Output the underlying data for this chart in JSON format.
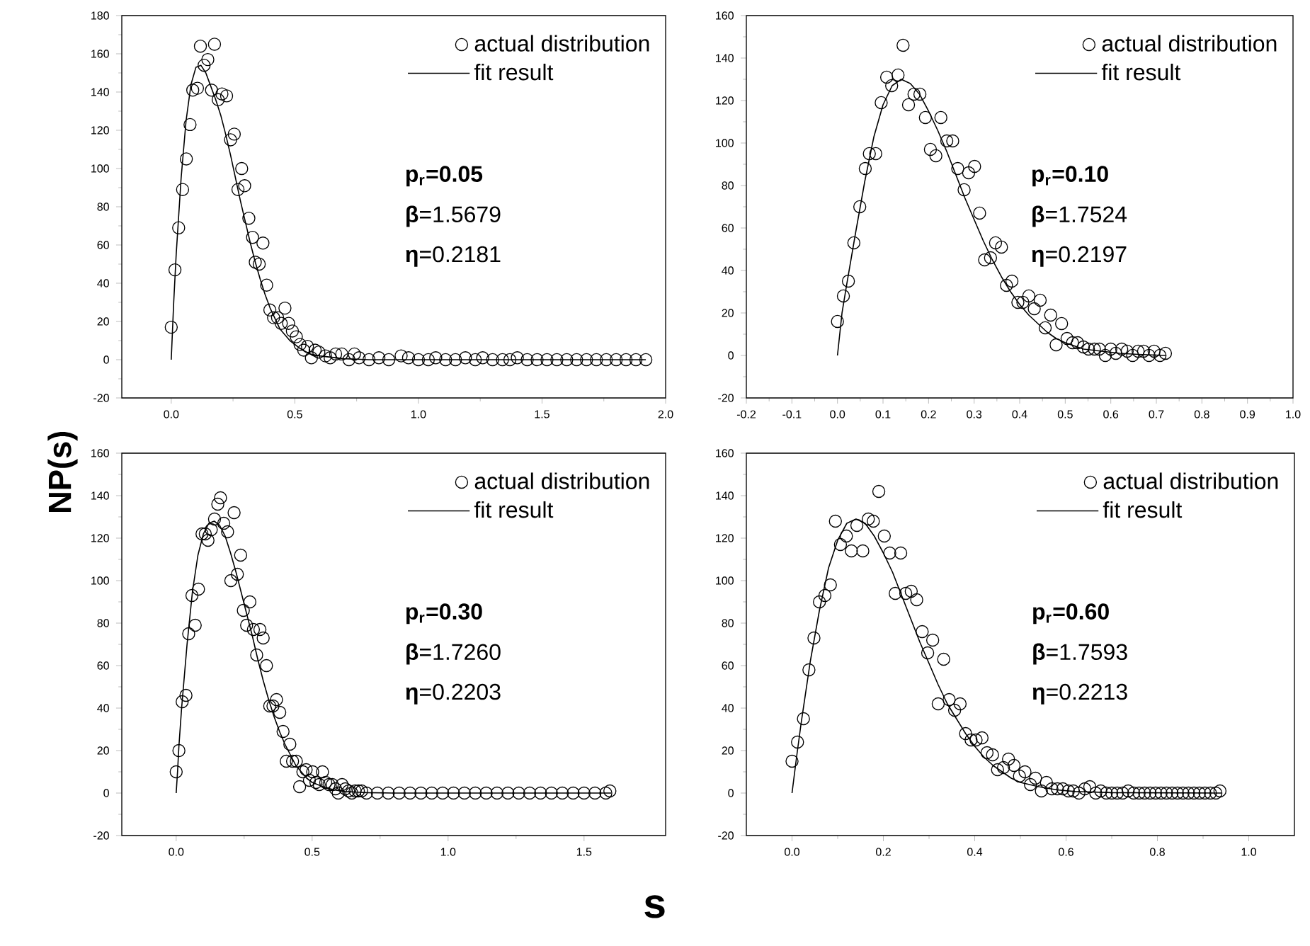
{
  "chart_data": [
    {
      "type": "scatter",
      "xlim": [
        -0.2,
        2.0
      ],
      "xticks": [
        {
          "value": 0,
          "label": "0.0"
        },
        0.5,
        {
          "value": 1,
          "label": "1.0"
        },
        1.5,
        {
          "value": 2,
          "label": "2.0"
        }
      ],
      "ylim": [
        -20,
        180
      ],
      "yticks": [
        -20,
        0,
        20,
        40,
        60,
        80,
        100,
        120,
        140,
        160,
        180
      ],
      "legend": "top right",
      "annotations": [
        "p$_{r}$=0.05",
        "**β**=1.5679",
        "**η**=0.2181"
      ],
      "series": [
        {
          "name": "actual distribution",
          "marker": "circle",
          "color": "#000000",
          "x": [
            0,
            0.015,
            0.03,
            0.046,
            0.061,
            0.076,
            0.087,
            0.106,
            0.118,
            0.133,
            0.148,
            0.163,
            0.175,
            0.19,
            0.205,
            0.224,
            0.24,
            0.255,
            0.27,
            0.285,
            0.297,
            0.314,
            0.329,
            0.34,
            0.356,
            0.371,
            0.386,
            0.399,
            0.414,
            0.43,
            0.445,
            0.46,
            0.475,
            0.49,
            0.506,
            0.521,
            0.536,
            0.551,
            0.567,
            0.582,
            0.597,
            0.624,
            0.643,
            0.665,
            0.69,
            0.719,
            0.741,
            0.76,
            0.8,
            0.84,
            0.88,
            0.93,
            0.96,
            1.0,
            1.04,
            1.07,
            1.11,
            1.15,
            1.19,
            1.23,
            1.26,
            1.3,
            1.34,
            1.37,
            1.4,
            1.44,
            1.48,
            1.52,
            1.56,
            1.6,
            1.64,
            1.68,
            1.72,
            1.76,
            1.8,
            1.84,
            1.88,
            1.92
          ],
          "values": [
            17,
            47,
            69,
            89,
            105,
            123,
            141,
            142,
            164,
            154,
            157,
            141,
            165,
            136,
            139,
            138,
            115,
            118,
            89,
            100,
            91,
            74,
            64,
            51,
            50,
            61,
            39,
            26,
            22,
            22,
            19,
            27,
            19,
            15,
            12,
            8,
            5,
            7,
            1,
            5,
            4,
            2,
            1,
            3,
            3,
            0,
            3,
            1,
            0,
            1,
            0,
            2,
            1,
            0,
            0,
            1,
            0,
            0,
            1,
            0,
            1,
            0,
            0,
            0,
            1,
            0,
            0,
            0,
            0,
            0,
            0,
            0,
            0,
            0,
            0,
            0,
            0,
            0
          ]
        },
        {
          "name": "fit result",
          "type": "line",
          "marker": "none",
          "line_style": "solid",
          "color": "#000000",
          "x": [
            0,
            0.01,
            0.02,
            0.04,
            0.06,
            0.08,
            0.1,
            0.12,
            0.14,
            0.16,
            0.18,
            0.2,
            0.22,
            0.24,
            0.26,
            0.28,
            0.3,
            0.32,
            0.34,
            0.36,
            0.38,
            0.4,
            0.44,
            0.48,
            0.52,
            0.56,
            0.6,
            0.7,
            0.8,
            1.92
          ],
          "values": [
            0,
            30,
            55,
            95,
            125,
            144,
            153,
            154,
            150,
            143,
            136,
            128,
            118,
            107,
            95,
            83,
            72,
            61,
            51,
            42,
            34,
            27,
            16,
            10,
            6,
            3,
            2,
            0.5,
            0,
            0
          ]
        }
      ]
    },
    {
      "type": "scatter",
      "xlim": [
        -0.2,
        1.0
      ],
      "xticks": [
        -0.2,
        -0.1,
        {
          "value": 0,
          "label": "0.0"
        },
        0.1,
        0.2,
        0.3,
        0.4,
        0.5,
        0.6,
        0.7,
        0.8,
        0.9,
        {
          "value": 1,
          "label": "1.0"
        }
      ],
      "ylim": [
        -20,
        160
      ],
      "yticks": [
        -20,
        0,
        20,
        40,
        60,
        80,
        100,
        120,
        140,
        160
      ],
      "legend": "top right",
      "annotations": [
        "p$_{r}$=0.10",
        "**β**=1.7524",
        "**η**=0.2197"
      ],
      "series": [
        {
          "name": "actual distribution",
          "marker": "circle",
          "color": "#000000",
          "x": [
            0.0,
            0.013,
            0.024,
            0.036,
            0.049,
            0.061,
            0.07,
            0.084,
            0.096,
            0.108,
            0.119,
            0.133,
            0.144,
            0.156,
            0.168,
            0.181,
            0.193,
            0.204,
            0.216,
            0.227,
            0.24,
            0.253,
            0.264,
            0.278,
            0.288,
            0.301,
            0.312,
            0.323,
            0.336,
            0.347,
            0.36,
            0.371,
            0.383,
            0.396,
            0.407,
            0.42,
            0.432,
            0.445,
            0.456,
            0.468,
            0.48,
            0.492,
            0.504,
            0.516,
            0.527,
            0.54,
            0.551,
            0.564,
            0.575,
            0.588,
            0.6,
            0.611,
            0.624,
            0.636,
            0.648,
            0.66,
            0.672,
            0.684,
            0.695,
            0.708,
            0.72
          ],
          "values": [
            16,
            28,
            35,
            53,
            70,
            88,
            95,
            95,
            119,
            131,
            127,
            132,
            146,
            118,
            123,
            123,
            112,
            97,
            94,
            112,
            101,
            101,
            88,
            78,
            86,
            89,
            67,
            45,
            46,
            53,
            51,
            33,
            35,
            25,
            25,
            28,
            22,
            26,
            13,
            19,
            5,
            15,
            8,
            6,
            6,
            4,
            3,
            3,
            3,
            0,
            3,
            1,
            3,
            2,
            0,
            2,
            2,
            0,
            2,
            0,
            1
          ]
        },
        {
          "name": "fit result",
          "type": "line",
          "marker": "none",
          "line_style": "solid",
          "color": "#000000",
          "x": [
            0,
            0.01,
            0.02,
            0.04,
            0.06,
            0.08,
            0.1,
            0.12,
            0.14,
            0.16,
            0.18,
            0.2,
            0.22,
            0.24,
            0.26,
            0.28,
            0.3,
            0.32,
            0.34,
            0.36,
            0.38,
            0.4,
            0.42,
            0.44,
            0.46,
            0.48,
            0.5,
            0.54,
            0.58,
            0.62,
            0.66,
            0.72
          ],
          "values": [
            0,
            20,
            33,
            58,
            82,
            103,
            118,
            127,
            130,
            128,
            123,
            115,
            106,
            96,
            85,
            74,
            64,
            54,
            45,
            37,
            30,
            24,
            19,
            15,
            11,
            8,
            6,
            3,
            2,
            1,
            0.5,
            0
          ]
        }
      ]
    },
    {
      "type": "scatter",
      "xlim": [
        -0.2,
        1.8
      ],
      "xticks": [
        {
          "value": 0,
          "label": "0.0"
        },
        0.5,
        {
          "value": 1,
          "label": "1.0"
        },
        1.5
      ],
      "ylim": [
        -20,
        160
      ],
      "yticks": [
        -20,
        0,
        20,
        40,
        60,
        80,
        100,
        120,
        140,
        160
      ],
      "legend": "top right",
      "xlabel": "s",
      "ylabel": "NP(s)",
      "annotations": [
        "p$_{r}$=0.30",
        "**β**=1.7260",
        "**η**=0.2203"
      ],
      "series": [
        {
          "name": "actual distribution",
          "marker": "circle",
          "color": "#000000",
          "x": [
            0.0,
            0.01,
            0.022,
            0.036,
            0.046,
            0.058,
            0.07,
            0.082,
            0.095,
            0.107,
            0.117,
            0.129,
            0.141,
            0.153,
            0.163,
            0.175,
            0.189,
            0.201,
            0.213,
            0.225,
            0.237,
            0.247,
            0.259,
            0.271,
            0.284,
            0.296,
            0.308,
            0.32,
            0.332,
            0.344,
            0.356,
            0.369,
            0.381,
            0.393,
            0.405,
            0.418,
            0.428,
            0.442,
            0.454,
            0.466,
            0.478,
            0.49,
            0.502,
            0.514,
            0.526,
            0.538,
            0.55,
            0.562,
            0.574,
            0.586,
            0.596,
            0.61,
            0.622,
            0.634,
            0.646,
            0.658,
            0.67,
            0.682,
            0.7,
            0.74,
            0.78,
            0.82,
            0.86,
            0.9,
            0.94,
            0.98,
            1.02,
            1.06,
            1.1,
            1.14,
            1.18,
            1.22,
            1.26,
            1.3,
            1.34,
            1.38,
            1.42,
            1.46,
            1.5,
            1.54,
            1.58,
            1.595
          ],
          "values": [
            10,
            20,
            43,
            46,
            75,
            93,
            79,
            96,
            122,
            122,
            119,
            124,
            129,
            136,
            139,
            127,
            123,
            100,
            132,
            103,
            112,
            86,
            79,
            90,
            77,
            65,
            77,
            73,
            60,
            41,
            41,
            44,
            38,
            29,
            15,
            23,
            15,
            15,
            3,
            10,
            11,
            6,
            10,
            5,
            4,
            10,
            5,
            4,
            4,
            2,
            0,
            4,
            2,
            1,
            0,
            1,
            1,
            1,
            0,
            0,
            0,
            0,
            0,
            0,
            0,
            0,
            0,
            0,
            0,
            0,
            0,
            0,
            0,
            0,
            0,
            0,
            0,
            0,
            0,
            0,
            0,
            1
          ]
        },
        {
          "name": "fit result",
          "type": "line",
          "marker": "none",
          "line_style": "solid",
          "color": "#000000",
          "x": [
            0,
            0.005,
            0.01,
            0.02,
            0.04,
            0.06,
            0.08,
            0.1,
            0.12,
            0.14,
            0.16,
            0.18,
            0.2,
            0.22,
            0.24,
            0.26,
            0.28,
            0.3,
            0.32,
            0.34,
            0.36,
            0.38,
            0.4,
            0.42,
            0.44,
            0.46,
            0.48,
            0.5,
            0.54,
            0.58,
            0.62,
            0.7,
            0.8,
            1.6
          ],
          "values": [
            0,
            10,
            22,
            40,
            70,
            95,
            112,
            122,
            127,
            128,
            126,
            121,
            113,
            104,
            94,
            84,
            74,
            63,
            53,
            44,
            36,
            29,
            23,
            18,
            13,
            10,
            7,
            5,
            3,
            1.5,
            0.7,
            0.2,
            0,
            0
          ]
        }
      ]
    },
    {
      "type": "scatter",
      "xlim": [
        -0.1,
        1.1
      ],
      "xticks": [
        {
          "value": 0,
          "label": "0.0"
        },
        0.2,
        0.4,
        0.6,
        0.8,
        {
          "value": 1,
          "label": "1.0"
        }
      ],
      "ylim": [
        -20,
        160
      ],
      "yticks": [
        -20,
        0,
        20,
        40,
        60,
        80,
        100,
        120,
        140,
        160
      ],
      "legend": "top right",
      "annotations": [
        "p$_{r}$=0.60",
        "**β**=1.7593",
        "**η**=0.2213"
      ],
      "series": [
        {
          "name": "actual distribution",
          "marker": "circle",
          "color": "#000000",
          "x": [
            0.0,
            0.012,
            0.025,
            0.037,
            0.048,
            0.06,
            0.072,
            0.084,
            0.095,
            0.106,
            0.119,
            0.13,
            0.142,
            0.155,
            0.167,
            0.178,
            0.19,
            0.202,
            0.214,
            0.226,
            0.238,
            0.249,
            0.261,
            0.273,
            0.285,
            0.297,
            0.308,
            0.32,
            0.332,
            0.344,
            0.356,
            0.368,
            0.38,
            0.392,
            0.403,
            0.416,
            0.427,
            0.439,
            0.45,
            0.463,
            0.474,
            0.486,
            0.498,
            0.51,
            0.522,
            0.533,
            0.546,
            0.557,
            0.569,
            0.581,
            0.593,
            0.605,
            0.616,
            0.628,
            0.641,
            0.652,
            0.665,
            0.676,
            0.688,
            0.7,
            0.712,
            0.724,
            0.736,
            0.748,
            0.76,
            0.772,
            0.784,
            0.796,
            0.808,
            0.82,
            0.832,
            0.844,
            0.856,
            0.868,
            0.88,
            0.892,
            0.904,
            0.916,
            0.928,
            0.937
          ],
          "values": [
            15,
            24,
            35,
            58,
            73,
            90,
            93,
            98,
            128,
            117,
            121,
            114,
            126,
            114,
            129,
            128,
            142,
            121,
            113,
            94,
            113,
            94,
            95,
            91,
            76,
            66,
            72,
            42,
            63,
            44,
            39,
            42,
            28,
            25,
            25,
            26,
            19,
            18,
            11,
            12,
            16,
            13,
            8,
            10,
            4,
            7,
            1,
            5,
            2,
            2,
            2,
            1,
            1,
            0,
            2,
            3,
            0,
            1,
            0,
            0,
            0,
            0,
            1,
            0,
            0,
            0,
            0,
            0,
            0,
            0,
            0,
            0,
            0,
            0,
            0,
            0,
            0,
            0,
            0,
            1
          ]
        },
        {
          "name": "fit result",
          "type": "line",
          "marker": "none",
          "line_style": "solid",
          "color": "#000000",
          "x": [
            0,
            0.01,
            0.02,
            0.04,
            0.06,
            0.08,
            0.1,
            0.12,
            0.14,
            0.16,
            0.18,
            0.2,
            0.22,
            0.24,
            0.26,
            0.28,
            0.3,
            0.32,
            0.34,
            0.36,
            0.38,
            0.4,
            0.42,
            0.44,
            0.46,
            0.48,
            0.5,
            0.54,
            0.58,
            0.62,
            0.7,
            0.94
          ],
          "values": [
            0,
            17,
            33,
            62,
            86,
            106,
            119,
            127,
            129,
            127,
            121,
            113,
            104,
            93,
            82,
            71,
            61,
            51,
            42,
            35,
            28,
            22,
            17,
            13,
            10,
            7,
            5,
            3,
            1.5,
            0.7,
            0.2,
            0
          ]
        }
      ]
    }
  ]
}
